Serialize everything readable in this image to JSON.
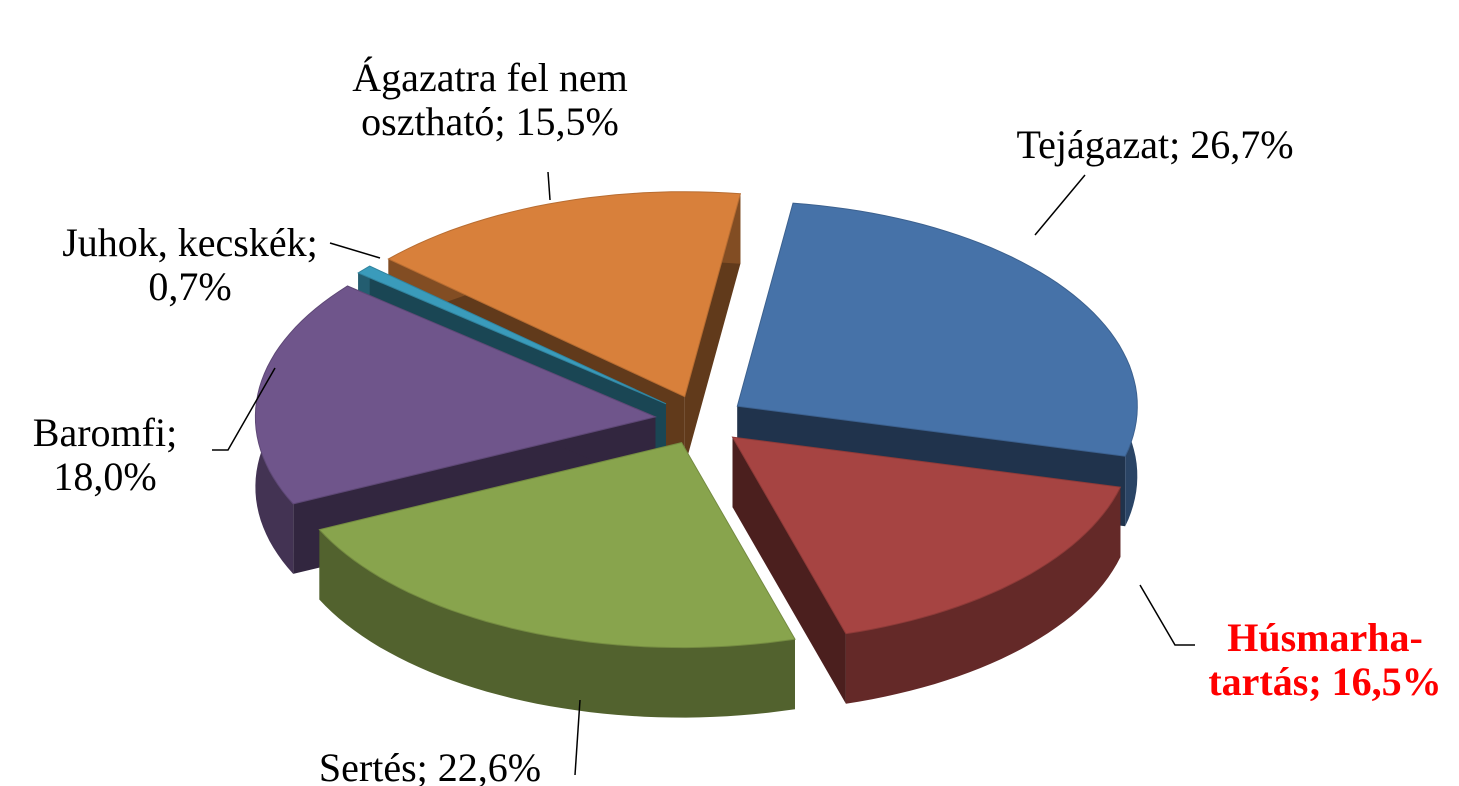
{
  "chart_data": {
    "type": "pie3d",
    "values": [
      26.7,
      16.5,
      22.6,
      18.0,
      0.7,
      15.5
    ],
    "value_labels": [
      "Tejágazat; 26,7%",
      "Húsmarha-tartás; 16,5%",
      "Sertés; 22,6%",
      "Baromfi; 18,0%",
      "Juhok, kecskék; 0,7%",
      "Ágazatra fel nem osztható; 15,5%"
    ],
    "colors": [
      "#4672a8",
      "#a64442",
      "#88a44d",
      "#6f558b",
      "#3a9bbb",
      "#d8803b"
    ],
    "label_colors": [
      "#000000",
      "#ff0000",
      "#000000",
      "#000000",
      "#000000",
      "#000000"
    ],
    "label_weights": [
      "normal",
      "bold",
      "normal",
      "normal",
      "normal",
      "normal"
    ]
  }
}
